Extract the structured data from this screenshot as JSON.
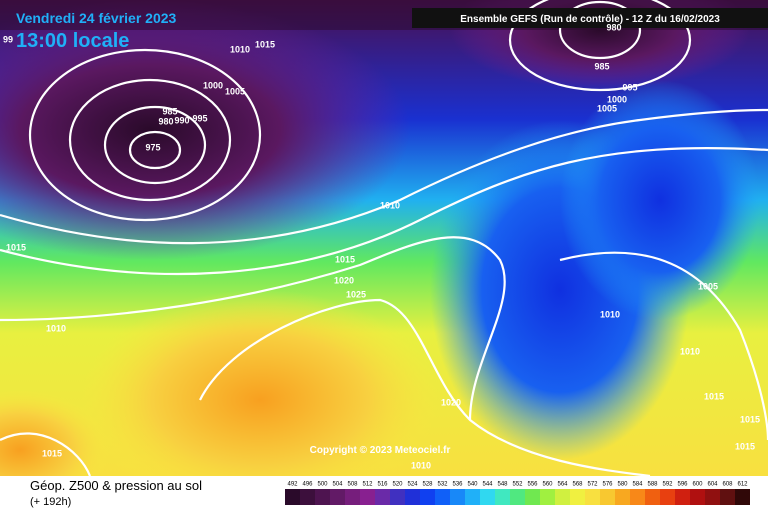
{
  "header": {
    "date": "Vendredi 24 février 2023",
    "time": "13:00 locale",
    "run": "Ensemble GEFS  (Run de contrôle)  -  12 Z du 16/02/2023"
  },
  "copyright": "Copyright © 2023 Meteociel.fr",
  "footer": {
    "title": "Géop. Z500 & pression au sol",
    "lead": "(+ 192h)"
  },
  "legend": {
    "labels": [
      492,
      496,
      500,
      504,
      508,
      512,
      516,
      520,
      524,
      528,
      532,
      536,
      540,
      544,
      548,
      552,
      556,
      560,
      564,
      568,
      572,
      576,
      580,
      584,
      588,
      592,
      596,
      600,
      604,
      608,
      612
    ],
    "colors": [
      "#2a0a2a",
      "#3c0f3c",
      "#4e1450",
      "#621a66",
      "#761e7c",
      "#882090",
      "#6a2aa8",
      "#4030c0",
      "#2030d8",
      "#1040f0",
      "#1060f8",
      "#1888f8",
      "#20b0f8",
      "#30d8f0",
      "#40e8c0",
      "#50e880",
      "#70e850",
      "#a0f040",
      "#d0f040",
      "#f0f040",
      "#f8e040",
      "#f8c830",
      "#f8a820",
      "#f88818",
      "#f06010",
      "#e84010",
      "#d02010",
      "#b01010",
      "#901010",
      "#601010",
      "#300808"
    ]
  },
  "isobars": [
    "99",
    "1010",
    "1015",
    "1000",
    "1005",
    "985",
    "980",
    "990",
    "995",
    "975",
    "1010",
    "1015",
    "1015",
    "1020",
    "1025",
    "1010",
    "1015",
    "1020",
    "1010",
    "980",
    "985",
    "995",
    "1000",
    "1005",
    "1005",
    "1010",
    "1010",
    "1015",
    "1015",
    "1015"
  ]
}
